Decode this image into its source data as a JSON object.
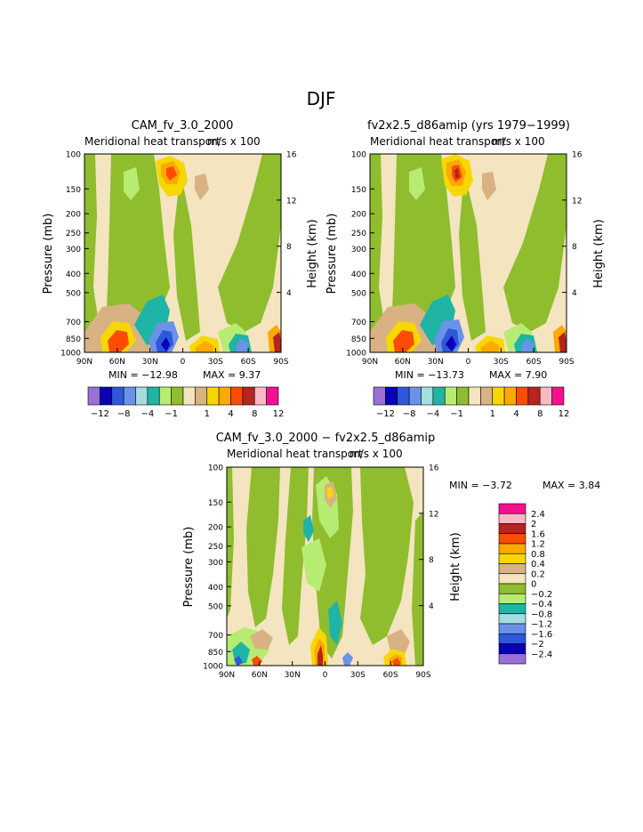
{
  "page_title": "DJF",
  "colors": [
    "#9b6fd6",
    "#0a00b4",
    "#2f57db",
    "#6b92e8",
    "#a3dde0",
    "#1fb4a5",
    "#b7ec72",
    "#8fbd2e",
    "#f4e4c0",
    "#d8b283",
    "#f6d700",
    "#ffa800",
    "#fb4c04",
    "#b42420",
    "#f9b8c4",
    "#f4118f"
  ],
  "chart_data": [
    {
      "type": "heatmap",
      "id": "p1",
      "title": "CAM_fv_3.0_2000",
      "subtitle": "Meridional heat transport",
      "units": "m/s x 100",
      "ylabel": "Pressure (mb)",
      "y2label": "Height (km)",
      "x_ticks": [
        "90N",
        "60N",
        "30N",
        "0",
        "30S",
        "60S",
        "90S"
      ],
      "y_ticks": [
        "100",
        "150",
        "200",
        "250",
        "300",
        "400",
        "500",
        "700",
        "850",
        "1000"
      ],
      "y2_ticks": [
        "16",
        "12",
        "8",
        "4"
      ],
      "min_label": "MIN = −12.98",
      "max_label": "MAX =     9.37",
      "colorbar_labels": [
        "−12",
        "−8",
        "−4",
        "−1",
        "1",
        "4",
        "8",
        "12"
      ]
    },
    {
      "type": "heatmap",
      "id": "p2",
      "title": "fv2x2.5_d86amip (yrs 1979−1999)",
      "subtitle": "Meridional heat transport",
      "units": "m/s x 100",
      "ylabel": "Pressure (mb)",
      "y2label": "Height (km)",
      "x_ticks": [
        "90N",
        "60N",
        "30N",
        "0",
        "30S",
        "60S",
        "90S"
      ],
      "y_ticks": [
        "100",
        "150",
        "200",
        "250",
        "300",
        "400",
        "500",
        "700",
        "850",
        "1000"
      ],
      "y2_ticks": [
        "16",
        "12",
        "8",
        "4"
      ],
      "min_label": "MIN = −13.73",
      "max_label": "MAX =     7.90",
      "colorbar_labels": [
        "−12",
        "−8",
        "−4",
        "−1",
        "1",
        "4",
        "8",
        "12"
      ]
    },
    {
      "type": "heatmap",
      "id": "p3",
      "title": "CAM_fv_3.0_2000 − fv2x2.5_d86amip",
      "subtitle": "Meridional heat transport",
      "units": "m/s x 100",
      "ylabel": "Pressure (mb)",
      "y2label": "Height (km)",
      "x_ticks": [
        "90N",
        "60N",
        "30N",
        "0",
        "30S",
        "60S",
        "90S"
      ],
      "y_ticks": [
        "100",
        "150",
        "200",
        "250",
        "300",
        "400",
        "500",
        "700",
        "850",
        "1000"
      ],
      "y2_ticks": [
        "16",
        "12",
        "8",
        "4"
      ],
      "min_label": "MIN =    −3.72",
      "max_label": "MAX =     3.84",
      "colorbar_labels": [
        "2.4",
        "2",
        "1.6",
        "1.2",
        "0.8",
        "0.4",
        "0.2",
        "0",
        "−0.2",
        "−0.4",
        "−0.8",
        "−1.2",
        "−1.6",
        "−2",
        "−2.4"
      ]
    }
  ]
}
